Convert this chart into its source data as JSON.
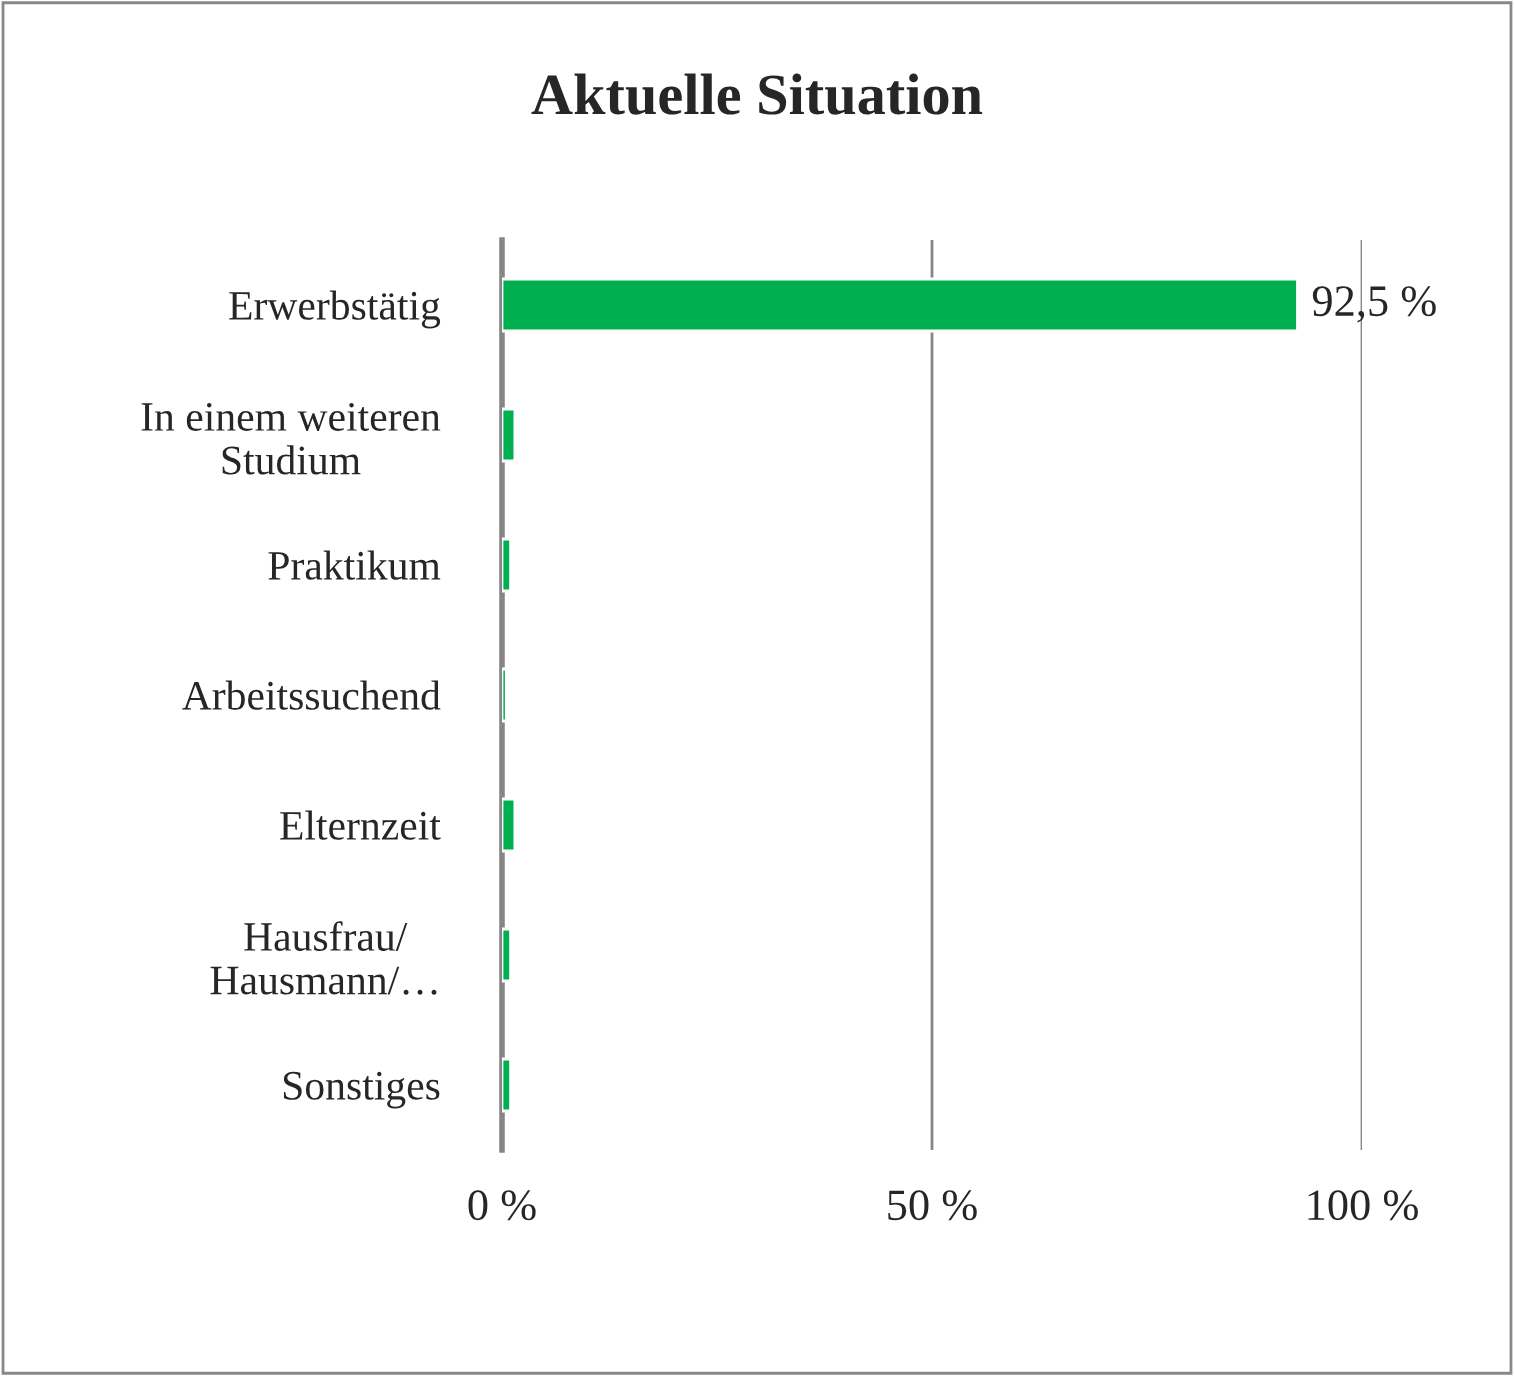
{
  "chart_data": {
    "type": "bar",
    "orientation": "horizontal",
    "title": "Aktuelle Situation",
    "categories": [
      "Erwerbstätig",
      "In einem weiteren\nStudium",
      "Praktikum",
      "Arbeitssuchend",
      "Elternzeit",
      "Hausfrau/\nHausmann/…",
      "Sonstiges"
    ],
    "values": [
      92.5,
      1.5,
      1,
      0.5,
      1.5,
      1,
      1
    ],
    "value_labels": [
      "92,5 %",
      null,
      null,
      null,
      null,
      null,
      null
    ],
    "color": "#00b050",
    "xlim": [
      0,
      100
    ],
    "xticks": [
      {
        "value": 0,
        "label": "0 %"
      },
      {
        "value": 50,
        "label": "50 %"
      },
      {
        "value": 100,
        "label": "100 %"
      }
    ],
    "grid": "x"
  }
}
